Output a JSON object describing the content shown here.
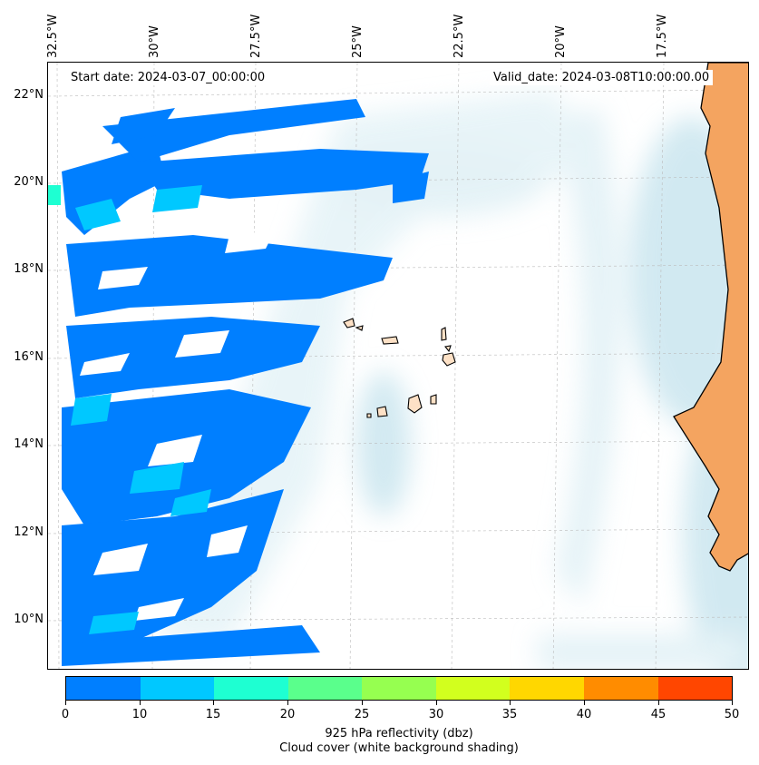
{
  "map": {
    "start_label": "Start date: 2024-03-07_00:00:00",
    "valid_label": "Valid_date: 2024-03-08T10:00:00.00",
    "lat_labels": [
      "22°N",
      "20°N",
      "18°N",
      "16°N",
      "14°N",
      "12°N",
      "10°N"
    ],
    "lon_labels": [
      "32.5°W",
      "30°W",
      "27.5°W",
      "25°W",
      "22.5°W",
      "20°W",
      "17.5°W"
    ],
    "land_color": "#f4a460",
    "coast_color": "#000000",
    "cloud_color": "#add8e6"
  },
  "colorbar": {
    "ticks": [
      "0",
      "10",
      "15",
      "20",
      "25",
      "30",
      "35",
      "40",
      "45",
      "50"
    ],
    "colors": [
      "#007fff",
      "#00c8ff",
      "#1effd2",
      "#5aff8c",
      "#96ff50",
      "#d2ff1e",
      "#ffd700",
      "#ff8c00",
      "#ff4600"
    ],
    "label_line1": "925 hPa reflectivity (dbz)",
    "label_line2": "Cloud cover (white background shading)"
  }
}
